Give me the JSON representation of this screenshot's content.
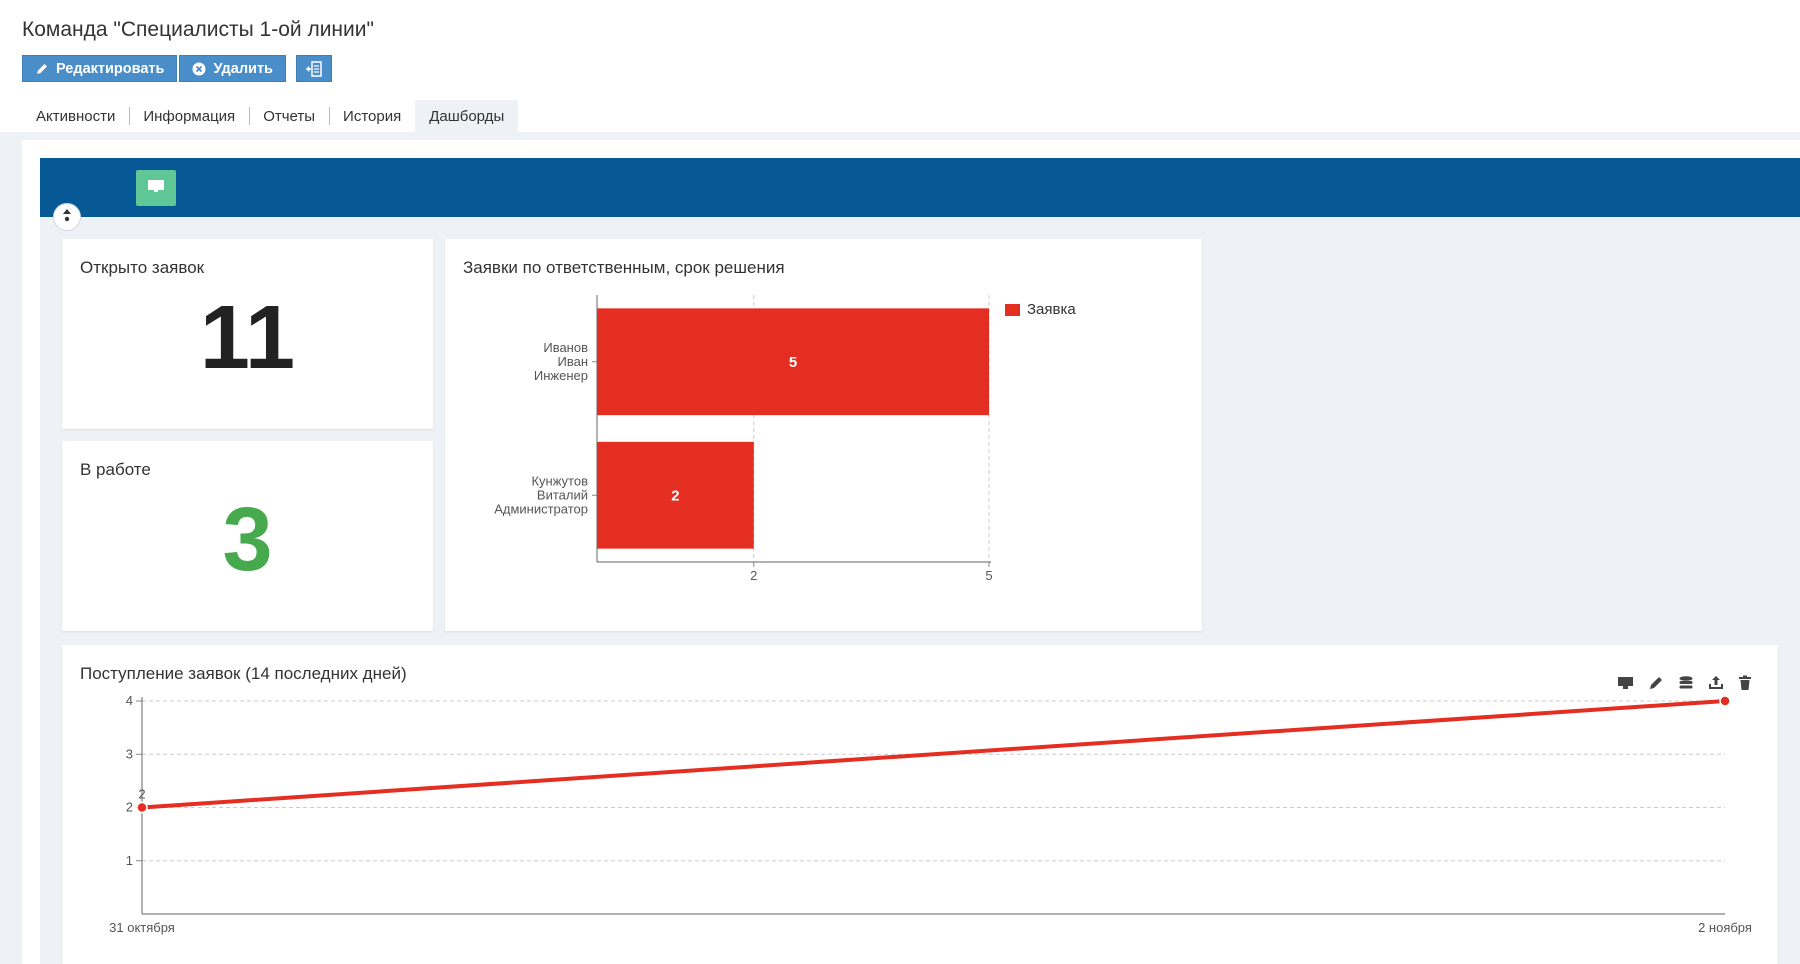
{
  "page": {
    "title": "Команда \"Специалисты 1-ой линии\""
  },
  "toolbar": {
    "edit_label": "Редактировать",
    "delete_label": "Удалить",
    "edit_icon": "pencil-icon",
    "delete_icon": "close-circle-icon",
    "add_icon": "add-widget-icon"
  },
  "tabs": [
    {
      "label": "Активности"
    },
    {
      "label": "Информация"
    },
    {
      "label": "Отчеты"
    },
    {
      "label": "История"
    },
    {
      "label": "Дашборды",
      "active": true
    }
  ],
  "colors": {
    "accent": "#4a8ec9",
    "header": "#075996",
    "monitor_button": "#5fc795",
    "bar": "#e52e22",
    "in_work": "#46a94e"
  },
  "widgets": {
    "open_requests": {
      "title": "Открыто заявок",
      "value": "11"
    },
    "in_work": {
      "title": "В работе",
      "value": "3"
    },
    "by_assignee": {
      "title": "Заявки по ответственным, срок решения"
    },
    "incoming": {
      "title": "Поступление заявок (14 последних дней)",
      "tools": [
        "monitor-icon",
        "pencil-icon",
        "database-icon",
        "export-icon",
        "trash-icon"
      ]
    }
  },
  "chart_data": [
    {
      "type": "bar",
      "orientation": "horizontal",
      "title": "Заявки по ответственным, срок решения",
      "categories": [
        [
          "Иванов",
          "Иван",
          "Инженер"
        ],
        [
          "Кунжутов",
          "Виталий",
          "Администратор"
        ]
      ],
      "series": [
        {
          "name": "Заявка",
          "values": [
            5,
            2
          ],
          "color": "#e52e22"
        }
      ],
      "data_labels": [
        "5",
        "2"
      ],
      "xlim": [
        0,
        5
      ],
      "x_ticks": [
        "2",
        "5"
      ],
      "x_tick_values": [
        2,
        5
      ],
      "grid": true,
      "legend": "top-right"
    },
    {
      "type": "line",
      "title": "Поступление заявок (14 последних дней)",
      "x": [
        "31 октября",
        "2 ноября"
      ],
      "series": [
        {
          "values": [
            2,
            4
          ],
          "color": "#e52e22"
        }
      ],
      "point_labels": [
        "2",
        ""
      ],
      "ylim": [
        0,
        4
      ],
      "y_ticks": [
        "4",
        "3",
        "2",
        "1"
      ],
      "y_tick_values": [
        4,
        3,
        2,
        1
      ],
      "grid": true
    }
  ]
}
